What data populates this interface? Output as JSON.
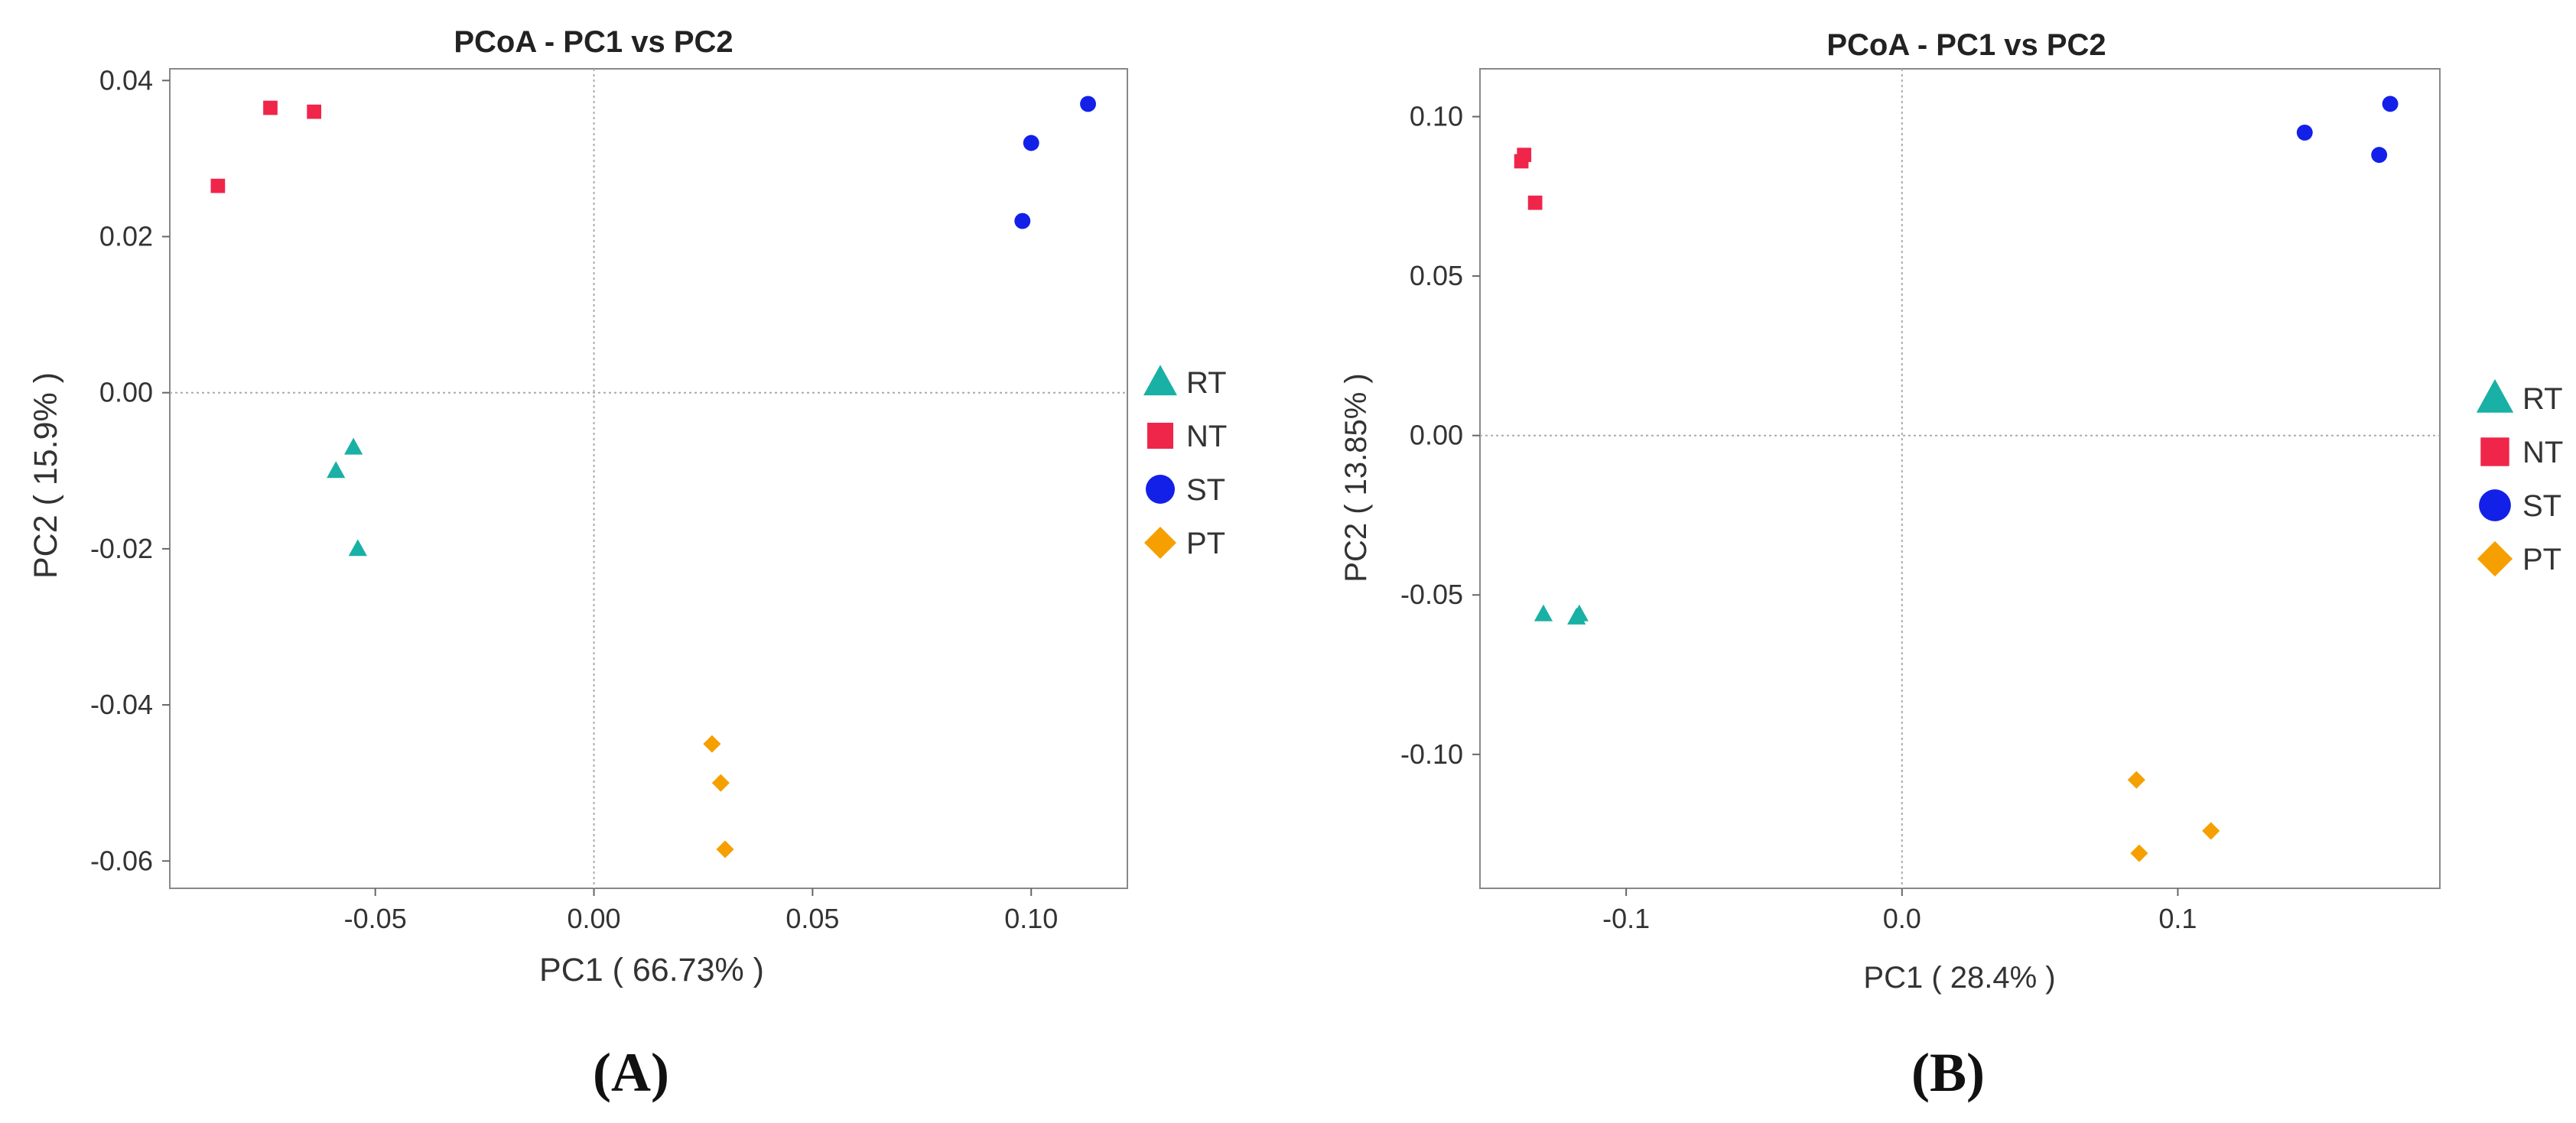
{
  "chart_data": [
    {
      "type": "scatter",
      "panel_label": "(A)",
      "title": "PCoA - PC1 vs PC2",
      "xlabel": "PC1 ( 66.73% )",
      "ylabel": "PC2 ( 15.9% )",
      "xlim": [
        -0.097,
        0.122
      ],
      "ylim": [
        -0.0635,
        0.0415
      ],
      "xticks": [
        {
          "v": -0.05,
          "label": "-0.05"
        },
        {
          "v": 0.0,
          "label": "0.00"
        },
        {
          "v": 0.05,
          "label": "0.05"
        },
        {
          "v": 0.1,
          "label": "0.10"
        }
      ],
      "yticks": [
        {
          "v": -0.06,
          "label": "-0.06"
        },
        {
          "v": -0.04,
          "label": "-0.04"
        },
        {
          "v": -0.02,
          "label": "-0.02"
        },
        {
          "v": 0.0,
          "label": "0.00"
        },
        {
          "v": 0.02,
          "label": "0.02"
        },
        {
          "v": 0.04,
          "label": "0.04"
        }
      ],
      "zero_lines": true,
      "series": [
        {
          "name": "RT",
          "marker": "triangle",
          "color": "#19b0a5",
          "points": [
            [
              -0.055,
              -0.007
            ],
            [
              -0.059,
              -0.01
            ],
            [
              -0.054,
              -0.02
            ]
          ]
        },
        {
          "name": "NT",
          "marker": "square",
          "color": "#f0254a",
          "points": [
            [
              -0.074,
              0.0365
            ],
            [
              -0.064,
              0.036
            ],
            [
              -0.086,
              0.0265
            ]
          ]
        },
        {
          "name": "ST",
          "marker": "circle",
          "color": "#1320e8",
          "points": [
            [
              0.1,
              0.032
            ],
            [
              0.113,
              0.037
            ],
            [
              0.098,
              0.022
            ]
          ]
        },
        {
          "name": "PT",
          "marker": "diamond",
          "color": "#f5a000",
          "points": [
            [
              0.027,
              -0.045
            ],
            [
              0.029,
              -0.05
            ],
            [
              0.03,
              -0.0585
            ]
          ]
        }
      ]
    },
    {
      "type": "scatter",
      "panel_label": "(B)",
      "title": "PCoA - PC1 vs PC2",
      "xlabel": "PC1 ( 28.4% )",
      "ylabel": "PC2 ( 13.85% )",
      "xlim": [
        -0.153,
        0.195
      ],
      "ylim": [
        -0.142,
        0.115
      ],
      "xticks": [
        {
          "v": -0.1,
          "label": "-0.1"
        },
        {
          "v": 0.0,
          "label": "0.0"
        },
        {
          "v": 0.1,
          "label": "0.1"
        }
      ],
      "yticks": [
        {
          "v": -0.1,
          "label": "-0.10"
        },
        {
          "v": -0.05,
          "label": "-0.05"
        },
        {
          "v": 0.0,
          "label": "0.00"
        },
        {
          "v": 0.05,
          "label": "0.05"
        },
        {
          "v": 0.1,
          "label": "0.10"
        }
      ],
      "zero_lines": true,
      "series": [
        {
          "name": "RT",
          "marker": "triangle",
          "color": "#19b0a5",
          "points": [
            [
              -0.13,
              -0.056
            ],
            [
              -0.118,
              -0.057
            ],
            [
              -0.117,
              -0.056
            ]
          ]
        },
        {
          "name": "NT",
          "marker": "square",
          "color": "#f0254a",
          "points": [
            [
              -0.138,
              0.086
            ],
            [
              -0.137,
              0.088
            ],
            [
              -0.133,
              0.073
            ]
          ]
        },
        {
          "name": "ST",
          "marker": "circle",
          "color": "#1320e8",
          "points": [
            [
              0.146,
              0.095
            ],
            [
              0.173,
              0.088
            ],
            [
              0.177,
              0.104
            ]
          ]
        },
        {
          "name": "PT",
          "marker": "diamond",
          "color": "#f5a000",
          "points": [
            [
              0.085,
              -0.108
            ],
            [
              0.086,
              -0.131
            ],
            [
              0.112,
              -0.124
            ]
          ]
        }
      ]
    }
  ]
}
